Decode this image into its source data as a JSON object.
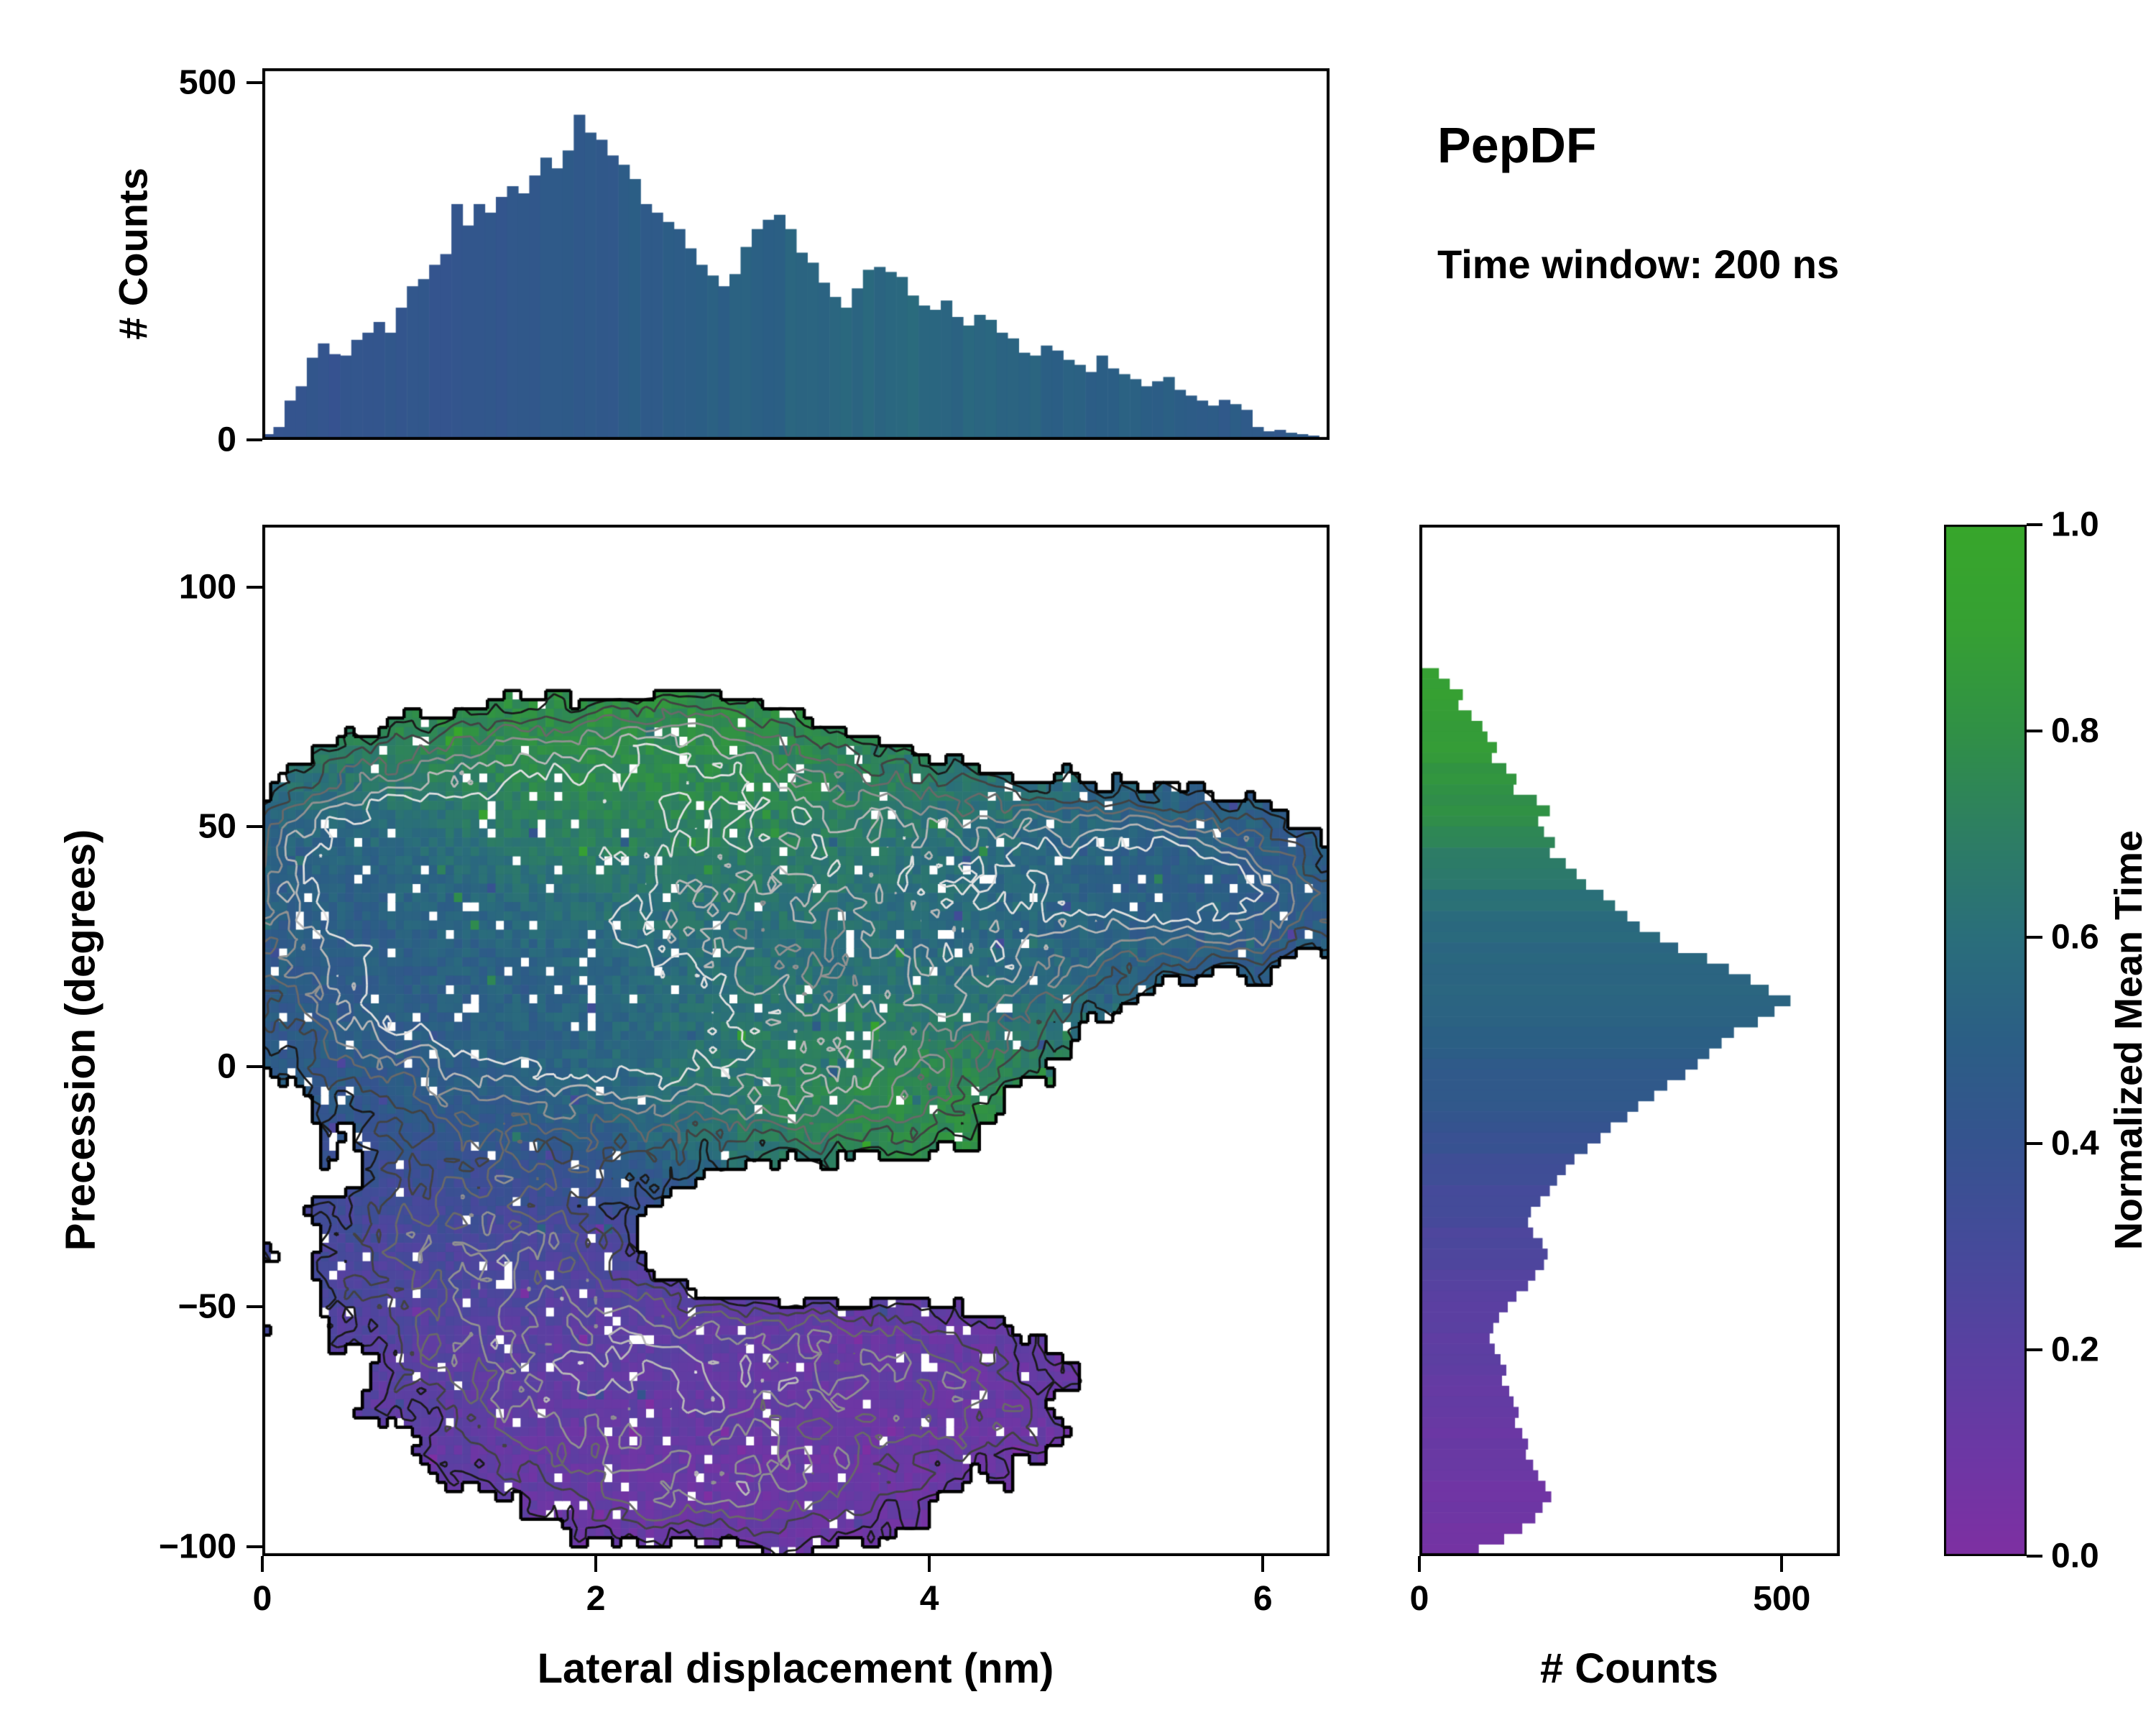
{
  "header": {
    "title": "PepDF",
    "subtitle": "Time window: 200 ns"
  },
  "labels": {
    "top_ylabel": "# Counts",
    "main_xlabel": "Lateral displacement (nm)",
    "main_ylabel": "Precession (degrees)",
    "right_xlabel": "# Counts",
    "colorbar_label": "Normalized Mean Time"
  },
  "colormap": {
    "stops": [
      [
        0.0,
        "#7e2fa2"
      ],
      [
        0.1,
        "#6c37a4"
      ],
      [
        0.2,
        "#5940a1"
      ],
      [
        0.3,
        "#454a9a"
      ],
      [
        0.4,
        "#35538f"
      ],
      [
        0.5,
        "#2b5e85"
      ],
      [
        0.6,
        "#2a6e7b"
      ],
      [
        0.7,
        "#2d7e63"
      ],
      [
        0.8,
        "#309046"
      ],
      [
        0.9,
        "#36a033"
      ],
      [
        1.0,
        "#37a62b"
      ]
    ]
  },
  "time_maps": {
    "by_displacement": [
      [
        0,
        0.4
      ],
      [
        0.6,
        0.42
      ],
      [
        1.2,
        0.43
      ],
      [
        1.8,
        0.45
      ],
      [
        2.4,
        0.48
      ],
      [
        3.0,
        0.52
      ],
      [
        3.6,
        0.56
      ],
      [
        4.2,
        0.55
      ],
      [
        4.8,
        0.52
      ],
      [
        5.4,
        0.49
      ],
      [
        6.4,
        0.45
      ]
    ],
    "by_precession": [
      [
        -102,
        0.06
      ],
      [
        -90,
        0.09
      ],
      [
        -80,
        0.11
      ],
      [
        -70,
        0.14
      ],
      [
        -60,
        0.17
      ],
      [
        -52,
        0.2
      ],
      [
        -44,
        0.23
      ],
      [
        -36,
        0.27
      ],
      [
        -28,
        0.3
      ],
      [
        -20,
        0.35
      ],
      [
        -12,
        0.4
      ],
      [
        -4,
        0.45
      ],
      [
        4,
        0.49
      ],
      [
        12,
        0.52
      ],
      [
        20,
        0.54
      ],
      [
        28,
        0.57
      ],
      [
        36,
        0.62
      ],
      [
        44,
        0.7
      ],
      [
        52,
        0.78
      ],
      [
        60,
        0.83
      ],
      [
        70,
        0.88
      ],
      [
        84,
        0.92
      ],
      [
        113,
        0.97
      ]
    ]
  },
  "chart_data": [
    {
      "id": "top_histogram",
      "type": "bar",
      "orientation": "vertical",
      "ylabel": "# Counts",
      "xlim": [
        0,
        6.4
      ],
      "ylim": [
        0,
        520
      ],
      "yticks": [
        0,
        500
      ],
      "ytick_labels": [
        "0",
        "500"
      ],
      "bins": {
        "start": 0,
        "width": 0.0667
      },
      "counts": [
        8,
        18,
        55,
        75,
        115,
        135,
        120,
        118,
        140,
        150,
        165,
        150,
        185,
        215,
        225,
        245,
        260,
        330,
        300,
        330,
        318,
        340,
        355,
        345,
        370,
        395,
        380,
        405,
        455,
        430,
        420,
        398,
        385,
        365,
        330,
        318,
        305,
        295,
        268,
        245,
        230,
        215,
        232,
        270,
        295,
        308,
        315,
        295,
        262,
        248,
        220,
        200,
        185,
        212,
        238,
        242,
        235,
        228,
        202,
        188,
        182,
        195,
        172,
        160,
        175,
        168,
        150,
        142,
        122,
        118,
        132,
        125,
        112,
        105,
        95,
        118,
        100,
        92,
        85,
        75,
        82,
        88,
        70,
        62,
        55,
        48,
        56,
        50,
        42,
        18,
        12,
        14,
        10,
        8,
        6,
        4
      ]
    },
    {
      "id": "joint_density_map",
      "type": "heatmap",
      "xlabel": "Lateral displacement (nm)",
      "ylabel": "Precession (degrees)",
      "value_label": "Normalized Mean Time",
      "xlim": [
        0,
        6.4
      ],
      "ylim": [
        -102,
        113
      ],
      "xticks": [
        0,
        2,
        4,
        6
      ],
      "xtick_labels": [
        "0",
        "2",
        "4",
        "6"
      ],
      "yticks": [
        -100,
        -50,
        0,
        50,
        100
      ],
      "ytick_labels": [
        "−100",
        "−50",
        "0",
        "50",
        "100"
      ],
      "grid": {
        "nx": 128,
        "ny": 112,
        "seed": 7,
        "noise_amp": 0.8,
        "speckle_amp": 0.15,
        "threshold": 0.5,
        "hole_rate": 0.045,
        "time_jitter": 0.12,
        "outlier_rate": 0.02
      },
      "regions": [
        {
          "cx": 1.5,
          "cy": 57,
          "sx": 0.85,
          "sy": 15,
          "amp": 1.0,
          "time": 0.85
        },
        {
          "cx": 2.6,
          "cy": 66,
          "sx": 0.5,
          "sy": 8,
          "amp": 0.6,
          "time": 0.8
        },
        {
          "cx": 3.25,
          "cy": 50,
          "sx": 1.0,
          "sy": 14,
          "amp": 0.95,
          "time": 0.75
        },
        {
          "cx": 4.7,
          "cy": 38,
          "sx": 0.85,
          "sy": 13,
          "amp": 0.95,
          "time": 0.5
        },
        {
          "cx": 5.5,
          "cy": 42,
          "sx": 0.6,
          "sy": 11,
          "amp": 0.8,
          "time": 0.47
        },
        {
          "cx": 5.95,
          "cy": 32,
          "sx": 0.45,
          "sy": 9,
          "amp": 0.7,
          "time": 0.46
        },
        {
          "cx": 0.9,
          "cy": 22,
          "sx": 0.8,
          "sy": 19,
          "amp": 1.3,
          "time": 0.44
        },
        {
          "cx": 0.55,
          "cy": 45,
          "sx": 0.55,
          "sy": 10,
          "amp": 0.75,
          "time": 0.42
        },
        {
          "cx": 2.3,
          "cy": 14,
          "sx": 1.05,
          "sy": 21,
          "amp": 1.05,
          "time": 0.58
        },
        {
          "cx": 1.9,
          "cy": 8,
          "sx": 0.6,
          "sy": 11,
          "amp": 0.5,
          "time": 0.55
        },
        {
          "cx": 3.6,
          "cy": -3,
          "sx": 0.75,
          "sy": 12,
          "amp": 0.9,
          "time": 0.86
        },
        {
          "cx": 4.35,
          "cy": 18,
          "sx": 0.6,
          "sy": 10,
          "amp": 0.7,
          "time": 0.55
        },
        {
          "cx": 1.3,
          "cy": -38,
          "sx": 0.85,
          "sy": 17,
          "amp": 0.95,
          "time": 0.28
        },
        {
          "cx": 2.0,
          "cy": -68,
          "sx": 0.95,
          "sy": 15,
          "amp": 0.95,
          "time": 0.15
        },
        {
          "cx": 3.5,
          "cy": -58,
          "sx": 0.85,
          "sy": 10,
          "amp": 0.85,
          "time": 0.13
        },
        {
          "cx": 3.0,
          "cy": -88,
          "sx": 0.95,
          "sy": 10,
          "amp": 0.9,
          "time": 0.1
        },
        {
          "cx": 4.3,
          "cy": -72,
          "sx": 0.45,
          "sy": 8,
          "amp": 0.65,
          "time": 0.12
        },
        {
          "cx": 3.05,
          "cy": -40,
          "sx": 0.55,
          "sy": 7,
          "amp": -0.75,
          "time": 0.3
        }
      ],
      "contours": {
        "levels": [
          0.58,
          0.75,
          0.92,
          1.1,
          1.3,
          1.5
        ],
        "gray_start": 26,
        "gray_end": 224,
        "line_width": 2.8
      },
      "boundary": {
        "color": "#000000",
        "line_width": 4.5
      }
    },
    {
      "id": "right_histogram",
      "type": "bar",
      "orientation": "horizontal",
      "xlabel": "# Counts",
      "xlim": [
        0,
        580
      ],
      "xticks": [
        0,
        500
      ],
      "xtick_labels": [
        "0",
        "500"
      ],
      "ylim": [
        -102,
        113
      ],
      "bins": {
        "start": 82,
        "step": -2.2
      },
      "counts": [
        25,
        40,
        58,
        52,
        70,
        85,
        92,
        105,
        98,
        118,
        132,
        128,
        160,
        178,
        162,
        170,
        185,
        178,
        200,
        215,
        228,
        252,
        268,
        285,
        302,
        330,
        355,
        395,
        425,
        455,
        480,
        510,
        488,
        465,
        432,
        415,
        398,
        382,
        365,
        340,
        322,
        300,
        285,
        262,
        248,
        230,
        212,
        200,
        188,
        178,
        165,
        152,
        148,
        155,
        168,
        175,
        170,
        158,
        148,
        132,
        120,
        108,
        100,
        95,
        102,
        110,
        118,
        112,
        122,
        128,
        135,
        130,
        140,
        148,
        145,
        155,
        162,
        172,
        180,
        168,
        158,
        140,
        115,
        80
      ]
    },
    {
      "id": "colorbar",
      "type": "colorbar",
      "label": "Normalized Mean Time",
      "lim": [
        0,
        1
      ],
      "ticks": [
        0,
        0.2,
        0.4,
        0.6,
        0.8,
        1
      ],
      "tick_labels": [
        "0.0",
        "0.2",
        "0.4",
        "0.6",
        "0.8",
        "1.0"
      ]
    }
  ]
}
